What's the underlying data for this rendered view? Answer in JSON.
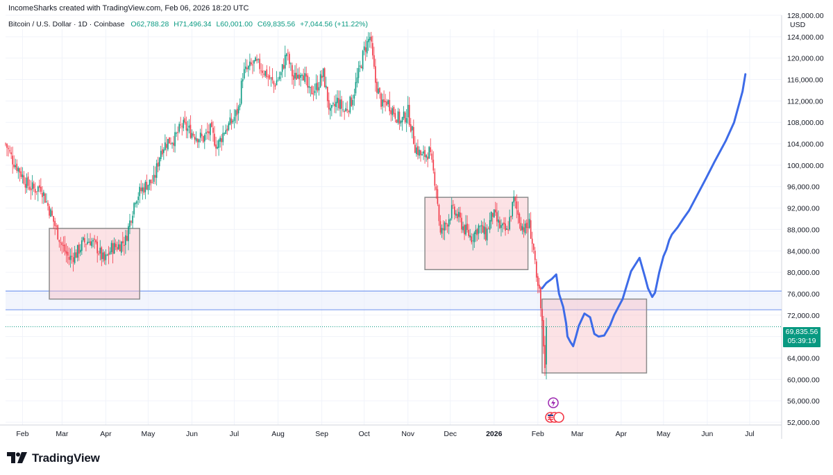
{
  "header": {
    "text": "IncomeSharks created with TradingView.com, Feb 06, 2026 18:20 UTC"
  },
  "legend": {
    "symbol": "Bitcoin / U.S. Dollar · 1D · Coinbase",
    "open": "O62,788.28",
    "high": "H71,496.34",
    "low": "L60,001.00",
    "close": "C69,835.56",
    "change": "+7,044.56 (+11.22%)"
  },
  "price_axis": {
    "currency": "USD",
    "last_price": "69,835.56",
    "countdown": "05:39:19"
  },
  "branding": {
    "logo_text": "TradingView",
    "logo_mark": "tradingview-logo"
  },
  "colors": {
    "up": "#089981",
    "down": "#f23645",
    "zone_fill": "#f8bfc6",
    "zone_stroke": "#8c8c8c",
    "support_line": "#7b9cf0",
    "projection": "#3d6be8",
    "grid": "#f0f3fa"
  },
  "chart_data": {
    "type": "candlestick",
    "title": "Bitcoin / U.S. Dollar · 1D · Coinbase",
    "ylabel": "USD",
    "ylim": [
      50000,
      130000
    ],
    "y_ticks": [
      "52,000.00",
      "56,000.00",
      "60,000.00",
      "64,000.00",
      "68,000.00",
      "72,000.00",
      "76,000.00",
      "80,000.00",
      "84,000.00",
      "88,000.00",
      "92,000.00",
      "96,000.00",
      "100,000.00",
      "104,000.00",
      "108,000.00",
      "112,000.00",
      "116,000.00",
      "120,000.00",
      "124,000.00",
      "128,000.00"
    ],
    "y_tick_values": [
      52000,
      56000,
      60000,
      64000,
      68000,
      72000,
      76000,
      80000,
      84000,
      88000,
      92000,
      96000,
      100000,
      104000,
      108000,
      112000,
      116000,
      120000,
      124000,
      128000
    ],
    "x_ticks": [
      "Feb",
      "Mar",
      "Apr",
      "May",
      "Jun",
      "Jul",
      "Aug",
      "Sep",
      "Oct",
      "Nov",
      "Dec",
      "2026",
      "Feb",
      "Mar",
      "Apr",
      "May",
      "Jun",
      "Jul"
    ],
    "x_tick_days": [
      12,
      40,
      71,
      101,
      132,
      162,
      193,
      224,
      254,
      285,
      315,
      346,
      377,
      405,
      436,
      466,
      497,
      527
    ],
    "bold_ticks": [
      "2026"
    ],
    "series_path_days": [
      0,
      5,
      10,
      15,
      20,
      25,
      32,
      40,
      45,
      50,
      55,
      60,
      65,
      70,
      75,
      80,
      85,
      92,
      100,
      105,
      110,
      115,
      120,
      125,
      130,
      135,
      140,
      145,
      150,
      155,
      160,
      165,
      168,
      172,
      176,
      180,
      185,
      190,
      195,
      199,
      204,
      210,
      215,
      220,
      225,
      230,
      235,
      240,
      245,
      250,
      254,
      258,
      262,
      267,
      270,
      275,
      280,
      285,
      290,
      295,
      300,
      305,
      308,
      312,
      316,
      320,
      325,
      330,
      335,
      340,
      345,
      350,
      355,
      360,
      365,
      368,
      371,
      374,
      376,
      378,
      380,
      382,
      383
    ],
    "series_path_close": [
      104000,
      101000,
      99000,
      96500,
      95500,
      96000,
      91000,
      85000,
      82500,
      83500,
      85500,
      86000,
      84500,
      82000,
      84500,
      85000,
      86000,
      94000,
      96500,
      97000,
      103000,
      104500,
      105000,
      107500,
      106500,
      105500,
      105000,
      106500,
      103500,
      106500,
      108000,
      110500,
      117000,
      118000,
      119000,
      118500,
      117000,
      115000,
      117000,
      121000,
      116000,
      118000,
      113500,
      114500,
      117000,
      109500,
      112000,
      110000,
      112000,
      117000,
      121500,
      124000,
      115500,
      111000,
      112000,
      110000,
      108000,
      110000,
      103500,
      101500,
      102500,
      96000,
      87000,
      89000,
      91500,
      90500,
      88000,
      86500,
      88500,
      87000,
      91000,
      88500,
      87500,
      93500,
      89000,
      88000,
      89000,
      84000,
      78000,
      76000,
      70000,
      63000,
      69835
    ],
    "data_labels": {
      "open": 62788.28,
      "high": 71496.34,
      "low": 60001.0,
      "close": 69835.56,
      "change": 7044.56,
      "change_pct": 11.22
    },
    "shapes": {
      "zones": [
        {
          "name": "zone-feb-apr",
          "day_start": 31,
          "day_end": 95,
          "price_top": 88200,
          "price_bottom": 75000
        },
        {
          "name": "zone-nov-jan",
          "day_start": 297,
          "day_end": 370,
          "price_top": 94000,
          "price_bottom": 80500
        },
        {
          "name": "zone-projection",
          "day_start": 380,
          "day_end": 454,
          "price_top": 75000,
          "price_bottom": 61200
        }
      ],
      "support_band": {
        "price_top": 76500,
        "price_bottom": 73000
      },
      "projection_path": {
        "days": [
          380,
          383,
          387,
          390,
          392,
          395,
          397,
          398,
          400,
          402,
          404,
          406,
          410,
          414,
          417,
          420,
          424,
          428,
          431,
          434,
          437,
          443,
          449,
          453,
          455,
          458,
          460,
          461,
          463,
          466,
          468,
          470,
          472,
          476,
          480,
          484,
          490,
          496,
          502,
          510,
          516,
          522,
          524
        ],
        "prices": [
          77000,
          78000,
          78800,
          79600,
          76000,
          73500,
          70500,
          68000,
          67000,
          66200,
          68000,
          70000,
          72300,
          71600,
          68500,
          68000,
          68200,
          70000,
          72000,
          73500,
          75000,
          80200,
          82700,
          79000,
          77000,
          75400,
          76200,
          77500,
          80000,
          83000,
          84200,
          86000,
          87100,
          88400,
          90000,
          91500,
          94500,
          97500,
          100600,
          104500,
          108000,
          113800,
          117000
        ]
      },
      "dotted_price_line": 69835.56
    }
  }
}
